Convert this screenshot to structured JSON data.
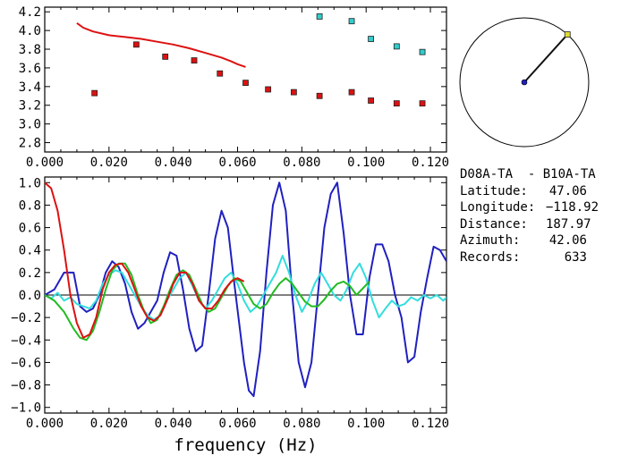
{
  "chart_data": [
    {
      "type": "scatter",
      "xlim": [
        0.0,
        0.125
      ],
      "ylim": [
        2.7,
        4.25
      ],
      "xticks": [
        "0.000",
        "0.020",
        "0.040",
        "0.060",
        "0.080",
        "0.100",
        "0.120"
      ],
      "yticks": [
        "2.8",
        "3.0",
        "3.2",
        "3.4",
        "3.6",
        "3.8",
        "4.0",
        "4.2"
      ],
      "series": [
        {
          "color": "#dd1111",
          "marker": "square",
          "x": [
            0.0155,
            0.0285,
            0.0375,
            0.0465,
            0.0545,
            0.0625,
            0.0695,
            0.0775,
            0.0855,
            0.0955,
            0.1015,
            0.1095,
            0.1175
          ],
          "y": [
            3.33,
            3.85,
            3.72,
            3.68,
            3.54,
            3.44,
            3.37,
            3.34,
            3.3,
            3.34,
            3.25,
            3.22,
            3.22
          ]
        },
        {
          "color": "#33cccc",
          "marker": "square",
          "x": [
            0.0855,
            0.0955,
            0.1015,
            0.1095,
            0.1175
          ],
          "y": [
            4.15,
            4.1,
            3.91,
            3.83,
            3.77
          ]
        },
        {
          "color": "#dd1111",
          "line": true,
          "x": [
            0.01,
            0.012,
            0.015,
            0.02,
            0.025,
            0.03,
            0.035,
            0.04,
            0.045,
            0.05,
            0.055,
            0.058,
            0.06,
            0.0625
          ],
          "y": [
            4.08,
            4.03,
            3.99,
            3.95,
            3.93,
            3.91,
            3.88,
            3.85,
            3.81,
            3.76,
            3.71,
            3.67,
            3.64,
            3.61
          ]
        }
      ]
    },
    {
      "type": "line",
      "xlabel": "frequency (Hz)",
      "xlim": [
        0.0,
        0.125
      ],
      "ylim": [
        -1.05,
        1.05
      ],
      "xticks": [
        "0.000",
        "0.020",
        "0.040",
        "0.060",
        "0.080",
        "0.100",
        "0.120"
      ],
      "yticks": [
        "1.0",
        "0.8",
        "0.6",
        "0.4",
        "0.2",
        "0.0",
        "−0.2",
        "−0.4",
        "−0.6",
        "−0.8",
        "−1.0"
      ],
      "series": [
        {
          "color": "#2020c0",
          "x": [
            0,
            0.003,
            0.006,
            0.009,
            0.011,
            0.013,
            0.015,
            0.017,
            0.019,
            0.021,
            0.023,
            0.025,
            0.027,
            0.029,
            0.031,
            0.033,
            0.035,
            0.037,
            0.039,
            0.041,
            0.043,
            0.045,
            0.047,
            0.049,
            0.051,
            0.053,
            0.055,
            0.057,
            0.059,
            0.0605,
            0.062,
            0.0635,
            0.065,
            0.067,
            0.069,
            0.071,
            0.073,
            0.075,
            0.077,
            0.079,
            0.081,
            0.083,
            0.085,
            0.087,
            0.089,
            0.091,
            0.093,
            0.095,
            0.097,
            0.099,
            0.101,
            0.103,
            0.105,
            0.107,
            0.109,
            0.111,
            0.113,
            0.115,
            0.117,
            0.119,
            0.121,
            0.123,
            0.125
          ],
          "y": [
            0.0,
            0.05,
            0.2,
            0.2,
            -0.1,
            -0.15,
            -0.12,
            0.0,
            0.2,
            0.3,
            0.25,
            0.1,
            -0.15,
            -0.3,
            -0.25,
            -0.15,
            -0.05,
            0.2,
            0.38,
            0.35,
            0.05,
            -0.3,
            -0.5,
            -0.45,
            0.0,
            0.5,
            0.75,
            0.6,
            0.1,
            -0.25,
            -0.6,
            -0.85,
            -0.9,
            -0.5,
            0.2,
            0.8,
            1.0,
            0.75,
            0.0,
            -0.6,
            -0.82,
            -0.6,
            0.0,
            0.6,
            0.9,
            1.0,
            0.55,
            0.0,
            -0.35,
            -0.35,
            0.15,
            0.45,
            0.45,
            0.3,
            0.0,
            -0.2,
            -0.6,
            -0.55,
            -0.15,
            0.15,
            0.43,
            0.4,
            0.3
          ]
        },
        {
          "color": "#33dddd",
          "x": [
            0,
            0.002,
            0.004,
            0.006,
            0.008,
            0.01,
            0.012,
            0.014,
            0.016,
            0.018,
            0.02,
            0.022,
            0.024,
            0.026,
            0.028,
            0.03,
            0.032,
            0.034,
            0.036,
            0.038,
            0.04,
            0.042,
            0.044,
            0.046,
            0.048,
            0.05,
            0.052,
            0.054,
            0.056,
            0.058,
            0.06,
            0.062,
            0.064,
            0.066,
            0.068,
            0.07,
            0.072,
            0.074,
            0.076,
            0.078,
            0.08,
            0.082,
            0.084,
            0.086,
            0.088,
            0.09,
            0.092,
            0.094,
            0.096,
            0.098,
            0.1,
            0.102,
            0.104,
            0.106,
            0.108,
            0.11,
            0.112,
            0.114,
            0.116,
            0.118,
            0.12,
            0.122,
            0.124,
            0.125
          ],
          "y": [
            0.0,
            -0.03,
            0.02,
            -0.05,
            -0.02,
            -0.08,
            -0.1,
            -0.12,
            -0.05,
            0.1,
            0.18,
            0.22,
            0.2,
            0.1,
            0.0,
            -0.1,
            -0.18,
            -0.22,
            -0.18,
            -0.05,
            0.05,
            0.15,
            0.2,
            0.08,
            -0.05,
            -0.12,
            -0.05,
            0.05,
            0.15,
            0.2,
            0.1,
            -0.05,
            -0.15,
            -0.1,
            0.0,
            0.1,
            0.2,
            0.35,
            0.2,
            0.0,
            -0.15,
            -0.05,
            0.1,
            0.2,
            0.1,
            0.0,
            -0.05,
            0.05,
            0.2,
            0.28,
            0.15,
            -0.05,
            -0.2,
            -0.12,
            -0.05,
            -0.1,
            -0.08,
            -0.02,
            -0.05,
            0.0,
            -0.03,
            0.0,
            -0.05,
            -0.02
          ]
        },
        {
          "color": "#22bb22",
          "x": [
            0,
            0.003,
            0.006,
            0.009,
            0.011,
            0.013,
            0.015,
            0.017,
            0.019,
            0.021,
            0.023,
            0.025,
            0.027,
            0.029,
            0.031,
            0.033,
            0.035,
            0.037,
            0.039,
            0.041,
            0.043,
            0.045,
            0.047,
            0.049,
            0.051,
            0.053,
            0.055,
            0.057,
            0.059,
            0.061,
            0.063,
            0.065,
            0.067,
            0.069,
            0.071,
            0.073,
            0.075,
            0.077,
            0.079,
            0.081,
            0.083,
            0.085,
            0.087,
            0.089,
            0.091,
            0.093,
            0.095,
            0.097,
            0.099,
            0.101
          ],
          "y": [
            0.0,
            -0.05,
            -0.15,
            -0.3,
            -0.38,
            -0.4,
            -0.32,
            -0.15,
            0.05,
            0.22,
            0.28,
            0.28,
            0.18,
            0.0,
            -0.15,
            -0.25,
            -0.22,
            -0.1,
            0.05,
            0.18,
            0.22,
            0.18,
            0.05,
            -0.08,
            -0.15,
            -0.12,
            -0.02,
            0.08,
            0.15,
            0.12,
            0.02,
            -0.08,
            -0.12,
            -0.08,
            0.02,
            0.1,
            0.15,
            0.1,
            0.02,
            -0.06,
            -0.1,
            -0.1,
            -0.04,
            0.04,
            0.1,
            0.12,
            0.08,
            0.0,
            0.06,
            0.12
          ]
        },
        {
          "color": "#dd1111",
          "x": [
            0,
            0.002,
            0.004,
            0.006,
            0.008,
            0.01,
            0.012,
            0.014,
            0.016,
            0.018,
            0.02,
            0.022,
            0.024,
            0.026,
            0.028,
            0.03,
            0.032,
            0.034,
            0.036,
            0.038,
            0.04,
            0.042,
            0.044,
            0.046,
            0.048,
            0.05,
            0.052,
            0.054,
            0.056,
            0.058,
            0.06,
            0.062
          ],
          "y": [
            1.0,
            0.95,
            0.75,
            0.4,
            0.0,
            -0.25,
            -0.38,
            -0.35,
            -0.2,
            0.05,
            0.2,
            0.27,
            0.28,
            0.2,
            0.05,
            -0.1,
            -0.2,
            -0.23,
            -0.18,
            -0.05,
            0.1,
            0.2,
            0.2,
            0.1,
            -0.05,
            -0.12,
            -0.12,
            -0.05,
            0.05,
            0.12,
            0.15,
            0.12
          ]
        }
      ]
    },
    {
      "type": "other",
      "note_azimuth_deg": 42.06,
      "circle_color": "#000000",
      "pointer_color": "#111111",
      "marker_color": "#dddd33",
      "center_color": "#2020c0"
    }
  ],
  "info": {
    "title": "D08A-TA  - B10A-TA",
    "rows": [
      {
        "label": "Latitude:",
        "value": "47.06"
      },
      {
        "label": "Longitude:",
        "value": "−118.92"
      },
      {
        "label": "Distance:",
        "value": "187.97"
      },
      {
        "label": "Azimuth:",
        "value": "42.06"
      },
      {
        "label": "Records:",
        "value": "633"
      }
    ]
  }
}
